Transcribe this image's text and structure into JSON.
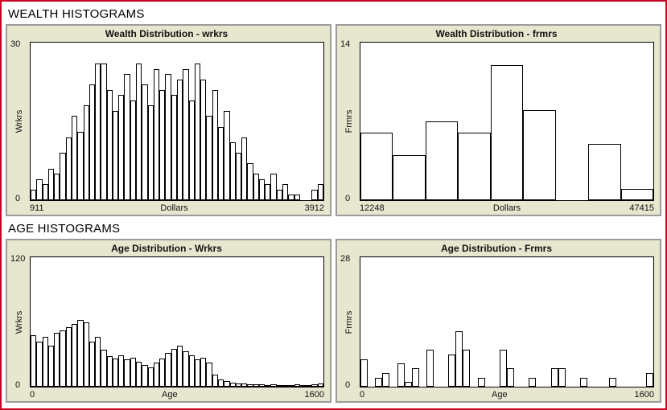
{
  "page": {
    "section_wealth": "WEALTH HISTOGRAMS",
    "section_age": "AGE HISTOGRAMS"
  },
  "colors": {
    "page_border": "#cc0022",
    "widget_bg": "#e7e7cf",
    "plot_bg": "#ffffff",
    "bar_fill": "#ffffff",
    "bar_stroke": "#000000"
  },
  "chart_data": [
    {
      "type": "bar",
      "title": "Wealth Distribution - wrkrs",
      "ylabel": "Wrkrs",
      "xlabel": "Dollars",
      "ymin": 0,
      "ymax": 30,
      "xmin": 911,
      "xmax": 3912,
      "grid": false,
      "legend": "none",
      "values": [
        2,
        4,
        3,
        6,
        5,
        9,
        12,
        16,
        13,
        18,
        22,
        26,
        26,
        21,
        17,
        20,
        24,
        19,
        26,
        22,
        18,
        25,
        21,
        24,
        20,
        23,
        25,
        19,
        26,
        23,
        16,
        21,
        14,
        17,
        11,
        9,
        12,
        7,
        5,
        4,
        3,
        5,
        2,
        3,
        1,
        1,
        0,
        0,
        2,
        3
      ]
    },
    {
      "type": "bar",
      "title": "Wealth Distribution - frmrs",
      "ylabel": "Frmrs",
      "xlabel": "Dollars",
      "ymin": 0,
      "ymax": 14,
      "xmin": 12248,
      "xmax": 47415,
      "grid": false,
      "legend": "none",
      "values": [
        6,
        4,
        7,
        6,
        12,
        8,
        0,
        5,
        1
      ]
    },
    {
      "type": "bar",
      "title": "Age Distribution - Wrkrs",
      "ylabel": "Wrkrs",
      "xlabel": "Age",
      "ymin": 0,
      "ymax": 120,
      "xmin": 0,
      "xmax": 1600,
      "grid": false,
      "legend": "none",
      "values": [
        48,
        42,
        46,
        38,
        50,
        52,
        55,
        58,
        62,
        60,
        42,
        46,
        34,
        28,
        26,
        29,
        25,
        27,
        23,
        20,
        18,
        22,
        26,
        31,
        35,
        38,
        33,
        29,
        25,
        27,
        22,
        11,
        7,
        5,
        4,
        3,
        3,
        2,
        2,
        2,
        1,
        2,
        1,
        1,
        1,
        2,
        1,
        1,
        2,
        3
      ]
    },
    {
      "type": "bar",
      "title": "Age Distribution - Frmrs",
      "ylabel": "Frmrs",
      "xlabel": "Age",
      "ymin": 0,
      "ymax": 28,
      "xmin": 0,
      "xmax": 1600,
      "grid": false,
      "legend": "none",
      "values": [
        6,
        0,
        2,
        3,
        0,
        5,
        1,
        4,
        0,
        8,
        0,
        0,
        7,
        12,
        8,
        0,
        2,
        0,
        0,
        8,
        4,
        0,
        0,
        2,
        0,
        0,
        4,
        4,
        0,
        0,
        2,
        0,
        0,
        0,
        2,
        0,
        0,
        0,
        0,
        3
      ]
    }
  ]
}
